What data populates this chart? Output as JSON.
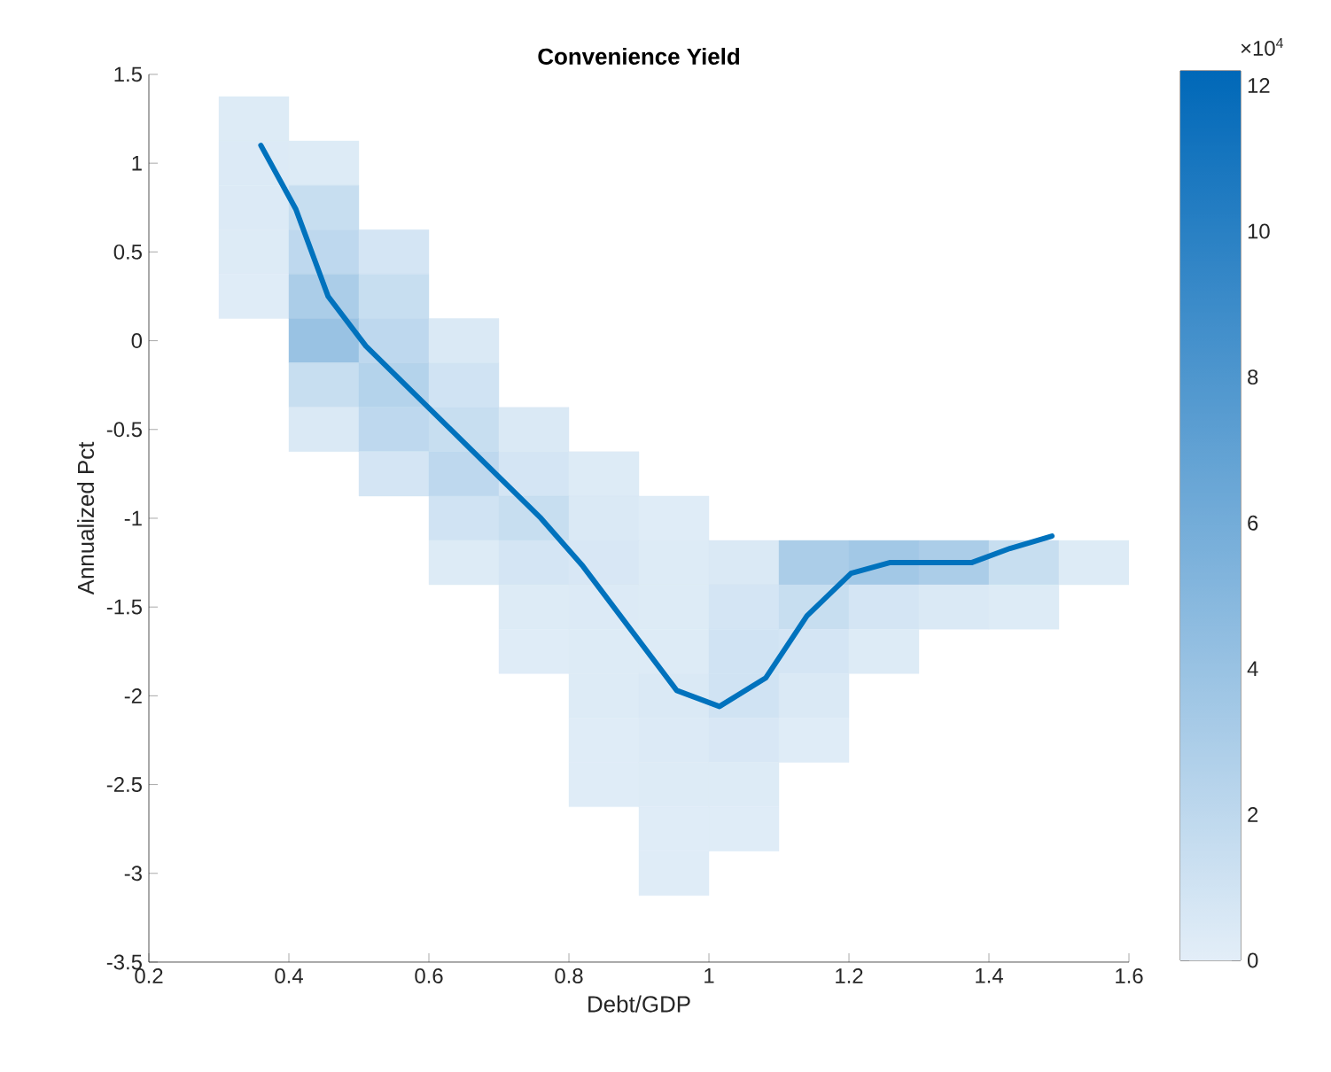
{
  "chart_data": {
    "type": "scatter",
    "title": "Convenience Yield",
    "xlabel": "Debt/GDP",
    "ylabel": "Annualized Pct",
    "xlim": [
      0.2,
      1.6
    ],
    "ylim": [
      -3.5,
      1.5
    ],
    "xticks": [
      0.2,
      0.4,
      0.6,
      0.8,
      1,
      1.2,
      1.4,
      1.6
    ],
    "yticks": [
      -3.5,
      -3,
      -2.5,
      -2,
      -1.5,
      -1,
      -0.5,
      0,
      0.5,
      1,
      1.5
    ],
    "clim": [
      0,
      12.2
    ],
    "cticks": [
      0,
      2,
      4,
      6,
      8,
      10,
      12
    ],
    "annotations": [
      "×10$^{4}$"
    ],
    "series": [
      {
        "marker": "square",
        "colors": [
          "#ddebf6",
          "#dceaf6",
          "#ddebf6",
          "#dceaf6",
          "#c7def0",
          "#ddebf6",
          "#bed8ee",
          "#d4e5f4",
          "#dfecf7",
          "#abcde8",
          "#c7def0",
          "#99c2e3",
          "#bed8ee",
          "#dae9f5",
          "#c7def0",
          "#b4d3eb",
          "#d0e3f3",
          "#dae9f5",
          "#bed8ee",
          "#c7def0",
          "#dae9f5",
          "#d4e5f4",
          "#bed8ee",
          "#d4e5f4",
          "#ddebf6",
          "#d0e3f3",
          "#c7def0",
          "#dae9f5",
          "#dfecf7",
          "#ddebf6",
          "#d4e5f4",
          "#d8e7f5",
          "#ddebf6",
          "#dae9f5",
          "#abcde8",
          "#a2c8e6",
          "#abcde8",
          "#c7def0",
          "#ddebf6",
          "#ddebf6",
          "#dceaf6",
          "#ddebf6",
          "#d4e5f4",
          "#c7def0",
          "#d4e5f4",
          "#dae9f5",
          "#ddebf6",
          "#dfecf7",
          "#ddebf6",
          "#ddebf6",
          "#d0e3f3",
          "#d4e5f4",
          "#ddebf6",
          "#ddebf6",
          "#dae9f5",
          "#d0e3f3",
          "#dae9f5",
          "#dfecf7",
          "#dceaf6",
          "#d8e7f5",
          "#dfecf7",
          "#dfecf7",
          "#ddebf6",
          "#ddebf6",
          "#dfecf7",
          "#dfecf7",
          "#dfecf7"
        ],
        "x": [
          0.35,
          0.35,
          0.45,
          0.35,
          0.45,
          0.35,
          0.45,
          0.55,
          0.35,
          0.45,
          0.55,
          0.45,
          0.55,
          0.65,
          0.45,
          0.55,
          0.65,
          0.45,
          0.55,
          0.65,
          0.75,
          0.55,
          0.65,
          0.75,
          0.85,
          0.65,
          0.75,
          0.85,
          0.95,
          0.65,
          0.75,
          0.85,
          0.95,
          1.05,
          1.15,
          1.25,
          1.35,
          1.45,
          1.55,
          0.75,
          0.85,
          0.95,
          1.05,
          1.15,
          1.25,
          1.35,
          1.45,
          0.75,
          0.85,
          0.95,
          1.05,
          1.15,
          1.25,
          0.85,
          0.95,
          1.05,
          1.15,
          0.85,
          0.95,
          1.05,
          1.15,
          0.85,
          0.95,
          1.05,
          0.95,
          1.05,
          0.95
        ],
        "values": [
          1.25,
          1.0,
          1.0,
          0.75,
          0.75,
          0.5,
          0.5,
          0.5,
          0.25,
          0.25,
          0.25,
          0.0,
          0.0,
          0.0,
          -0.25,
          -0.25,
          -0.25,
          -0.5,
          -0.5,
          -0.5,
          -0.5,
          -0.75,
          -0.75,
          -0.75,
          -0.75,
          -1.0,
          -1.0,
          -1.0,
          -1.0,
          -1.25,
          -1.25,
          -1.25,
          -1.25,
          -1.25,
          -1.25,
          -1.25,
          -1.25,
          -1.25,
          -1.25,
          -1.5,
          -1.5,
          -1.5,
          -1.5,
          -1.5,
          -1.5,
          -1.5,
          -1.5,
          -1.75,
          -1.75,
          -1.75,
          -1.75,
          -1.75,
          -1.75,
          -2.0,
          -2.0,
          -2.0,
          -2.0,
          -2.25,
          -2.25,
          -2.25,
          -2.25,
          -2.5,
          -2.5,
          -2.5,
          -2.75,
          -2.75,
          -3.0
        ],
        "cvalues": [
          0.3,
          0.4,
          0.3,
          0.4,
          1.5,
          0.3,
          2,
          0.8,
          0.2,
          3,
          1.5,
          4,
          2,
          0.5,
          1.5,
          2.5,
          1,
          0.5,
          2,
          1.5,
          0.5,
          0.8,
          2,
          0.8,
          0.3,
          1,
          1.5,
          0.5,
          0.2,
          0.3,
          0.8,
          0.6,
          0.3,
          0.5,
          3,
          3.5,
          3,
          1.5,
          0.3,
          0.3,
          0.4,
          0.3,
          0.8,
          1.5,
          0.8,
          0.5,
          0.3,
          0.2,
          0.3,
          0.3,
          1,
          0.8,
          0.3,
          0.3,
          0.5,
          1,
          0.5,
          0.2,
          0.4,
          0.6,
          0.2,
          0.2,
          0.3,
          0.3,
          0.2,
          0.2,
          0.2
        ]
      },
      {
        "type": "line",
        "color": "#0072bd",
        "marker": "none",
        "line_style": "solid",
        "x": [
          0.36,
          0.41,
          0.456,
          0.51,
          0.76,
          0.82,
          0.954,
          1.015,
          1.081,
          1.14,
          1.203,
          1.258,
          1.375,
          1.43,
          1.49
        ],
        "values": [
          1.1,
          0.74,
          0.25,
          -0.03,
          -1.0,
          -1.27,
          -1.97,
          -2.06,
          -1.9,
          -1.55,
          -1.31,
          -1.25,
          -1.25,
          -1.17,
          -1.1
        ]
      }
    ]
  }
}
